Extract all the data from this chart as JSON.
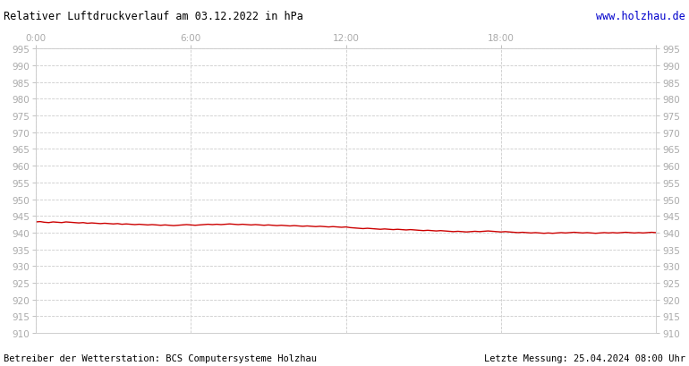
{
  "title_left": "Relativer Luftdruckverlauf am 03.12.2022 in hPa",
  "title_right": "www.holzhau.de",
  "footer_left": "Betreiber der Wetterstation: BCS Computersysteme Holzhau",
  "footer_right": "Letzte Messung: 25.04.2024 08:00 Uhr",
  "ylim": [
    910,
    995
  ],
  "xlim": [
    0,
    1440
  ],
  "ytick_step": 5,
  "xticks": [
    0,
    360,
    720,
    1080,
    1440
  ],
  "xtick_labels": [
    "0:00",
    "6:00",
    "12:00",
    "18:00",
    ""
  ],
  "background_color": "#ffffff",
  "plot_bg_color": "#ffffff",
  "line_color": "#cc0000",
  "grid_color": "#cccccc",
  "tick_label_color": "#aaaaaa",
  "title_color": "#000000",
  "title_right_color": "#0000cc",
  "footer_color": "#000000",
  "pressure_data": [
    [
      0,
      943.2
    ],
    [
      10,
      943.3
    ],
    [
      20,
      943.1
    ],
    [
      30,
      943.0
    ],
    [
      40,
      943.2
    ],
    [
      50,
      943.1
    ],
    [
      60,
      943.0
    ],
    [
      70,
      943.2
    ],
    [
      80,
      943.1
    ],
    [
      90,
      943.0
    ],
    [
      100,
      942.9
    ],
    [
      110,
      943.0
    ],
    [
      120,
      942.8
    ],
    [
      130,
      942.9
    ],
    [
      140,
      942.8
    ],
    [
      150,
      942.7
    ],
    [
      160,
      942.8
    ],
    [
      170,
      942.7
    ],
    [
      180,
      942.6
    ],
    [
      190,
      942.7
    ],
    [
      200,
      942.5
    ],
    [
      210,
      942.6
    ],
    [
      220,
      942.5
    ],
    [
      230,
      942.4
    ],
    [
      240,
      942.5
    ],
    [
      250,
      942.4
    ],
    [
      260,
      942.3
    ],
    [
      270,
      942.4
    ],
    [
      280,
      942.3
    ],
    [
      290,
      942.2
    ],
    [
      300,
      942.3
    ],
    [
      310,
      942.2
    ],
    [
      320,
      942.1
    ],
    [
      330,
      942.2
    ],
    [
      340,
      942.3
    ],
    [
      350,
      942.4
    ],
    [
      360,
      942.3
    ],
    [
      370,
      942.2
    ],
    [
      380,
      942.3
    ],
    [
      390,
      942.4
    ],
    [
      400,
      942.5
    ],
    [
      410,
      942.4
    ],
    [
      420,
      942.5
    ],
    [
      430,
      942.4
    ],
    [
      440,
      942.5
    ],
    [
      450,
      942.6
    ],
    [
      460,
      942.5
    ],
    [
      470,
      942.4
    ],
    [
      480,
      942.5
    ],
    [
      490,
      942.4
    ],
    [
      500,
      942.3
    ],
    [
      510,
      942.4
    ],
    [
      520,
      942.3
    ],
    [
      530,
      942.2
    ],
    [
      540,
      942.3
    ],
    [
      550,
      942.2
    ],
    [
      560,
      942.1
    ],
    [
      570,
      942.2
    ],
    [
      580,
      942.1
    ],
    [
      590,
      942.0
    ],
    [
      600,
      942.1
    ],
    [
      610,
      942.0
    ],
    [
      620,
      941.9
    ],
    [
      630,
      942.0
    ],
    [
      640,
      941.9
    ],
    [
      650,
      941.8
    ],
    [
      660,
      941.9
    ],
    [
      670,
      941.8
    ],
    [
      680,
      941.7
    ],
    [
      690,
      941.8
    ],
    [
      700,
      941.7
    ],
    [
      710,
      941.6
    ],
    [
      720,
      941.7
    ],
    [
      730,
      941.5
    ],
    [
      740,
      941.4
    ],
    [
      750,
      941.3
    ],
    [
      760,
      941.2
    ],
    [
      770,
      941.3
    ],
    [
      780,
      941.2
    ],
    [
      790,
      941.1
    ],
    [
      800,
      941.0
    ],
    [
      810,
      941.1
    ],
    [
      820,
      941.0
    ],
    [
      830,
      940.9
    ],
    [
      840,
      941.0
    ],
    [
      850,
      940.9
    ],
    [
      860,
      940.8
    ],
    [
      870,
      940.9
    ],
    [
      880,
      940.8
    ],
    [
      890,
      940.7
    ],
    [
      900,
      940.6
    ],
    [
      910,
      940.7
    ],
    [
      920,
      940.6
    ],
    [
      930,
      940.5
    ],
    [
      940,
      940.6
    ],
    [
      950,
      940.5
    ],
    [
      960,
      940.4
    ],
    [
      970,
      940.3
    ],
    [
      980,
      940.4
    ],
    [
      990,
      940.3
    ],
    [
      1000,
      940.2
    ],
    [
      1010,
      940.3
    ],
    [
      1020,
      940.4
    ],
    [
      1030,
      940.3
    ],
    [
      1040,
      940.4
    ],
    [
      1050,
      940.5
    ],
    [
      1060,
      940.4
    ],
    [
      1070,
      940.3
    ],
    [
      1080,
      940.2
    ],
    [
      1090,
      940.3
    ],
    [
      1100,
      940.2
    ],
    [
      1110,
      940.1
    ],
    [
      1120,
      940.0
    ],
    [
      1130,
      940.1
    ],
    [
      1140,
      940.0
    ],
    [
      1150,
      939.9
    ],
    [
      1160,
      940.0
    ],
    [
      1170,
      939.9
    ],
    [
      1180,
      939.8
    ],
    [
      1190,
      939.9
    ],
    [
      1200,
      939.8
    ],
    [
      1210,
      939.9
    ],
    [
      1220,
      940.0
    ],
    [
      1230,
      939.9
    ],
    [
      1240,
      940.0
    ],
    [
      1250,
      940.1
    ],
    [
      1260,
      940.0
    ],
    [
      1270,
      939.9
    ],
    [
      1280,
      940.0
    ],
    [
      1290,
      939.9
    ],
    [
      1300,
      939.8
    ],
    [
      1310,
      939.9
    ],
    [
      1320,
      940.0
    ],
    [
      1330,
      939.9
    ],
    [
      1340,
      940.0
    ],
    [
      1350,
      939.9
    ],
    [
      1360,
      940.0
    ],
    [
      1370,
      940.1
    ],
    [
      1380,
      940.0
    ],
    [
      1390,
      939.9
    ],
    [
      1400,
      940.0
    ],
    [
      1410,
      939.9
    ],
    [
      1420,
      940.0
    ],
    [
      1430,
      940.1
    ],
    [
      1440,
      940.0
    ]
  ]
}
